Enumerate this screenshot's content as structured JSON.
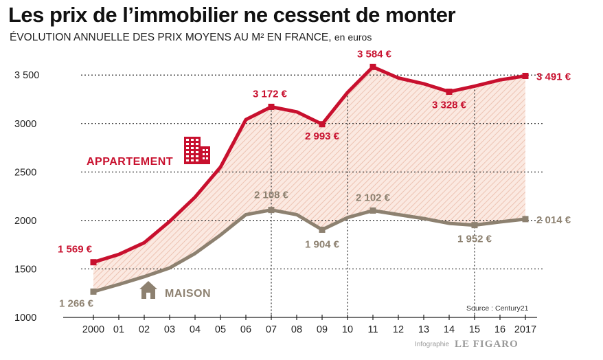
{
  "header": {
    "title": "Les prix de l’immobilier ne cessent de monter",
    "subtitle": "ÉVOLUTION ANNUELLE DES PRIX MOYENS AU M² EN FRANCE,",
    "subtitle_unit": "en euros"
  },
  "footer": {
    "source": "Source : Century21",
    "credit": "Infographie",
    "brand": "LE FIGARO"
  },
  "chart_data": {
    "type": "line",
    "x": [
      2000,
      2001,
      2002,
      2003,
      2004,
      2005,
      2006,
      2007,
      2008,
      2009,
      2010,
      2011,
      2012,
      2013,
      2014,
      2015,
      2016,
      2017
    ],
    "x_tick_labels": [
      "2000",
      "01",
      "02",
      "03",
      "04",
      "05",
      "06",
      "07",
      "08",
      "09",
      "10",
      "11",
      "12",
      "13",
      "14",
      "15",
      "16",
      "2017"
    ],
    "ylim": [
      1000,
      3700
    ],
    "y_ticks": [
      1000,
      1500,
      2000,
      2500,
      3000,
      3500
    ],
    "y_tick_labels": [
      "1000",
      "1500",
      "2000",
      "2500",
      "3000",
      "3 500"
    ],
    "series": [
      {
        "name": "Appartement",
        "color": "#c8102e",
        "icon": "building-icon",
        "values": [
          1569,
          1650,
          1770,
          1990,
          2240,
          2550,
          3040,
          3172,
          3120,
          2993,
          3320,
          3584,
          3470,
          3410,
          3328,
          3385,
          3450,
          3491
        ],
        "labels": [
          {
            "x": 2000,
            "text": "1 569 €"
          },
          {
            "x": 2007,
            "text": "3 172 €"
          },
          {
            "x": 2009,
            "text": "2 993 €"
          },
          {
            "x": 2011,
            "text": "3 584 €"
          },
          {
            "x": 2014,
            "text": "3 328 €"
          },
          {
            "x": 2017,
            "text": "3 491 €"
          }
        ]
      },
      {
        "name": "Maison",
        "color": "#8d8170",
        "icon": "house-icon",
        "values": [
          1266,
          1340,
          1420,
          1510,
          1660,
          1850,
          2060,
          2108,
          2060,
          1904,
          2030,
          2102,
          2060,
          2020,
          1970,
          1952,
          1985,
          2014
        ],
        "labels": [
          {
            "x": 2000,
            "text": "1 266 €"
          },
          {
            "x": 2007,
            "text": "2 108 €"
          },
          {
            "x": 2009,
            "text": "1 904 €"
          },
          {
            "x": 2011,
            "text": "2 102 €"
          },
          {
            "x": 2015,
            "text": "1 952 €"
          },
          {
            "x": 2017,
            "text": "2 014 €"
          }
        ]
      }
    ],
    "grid": "horizontal-dotted",
    "reference_lines_x": [
      2007,
      2010,
      2015
    ]
  }
}
